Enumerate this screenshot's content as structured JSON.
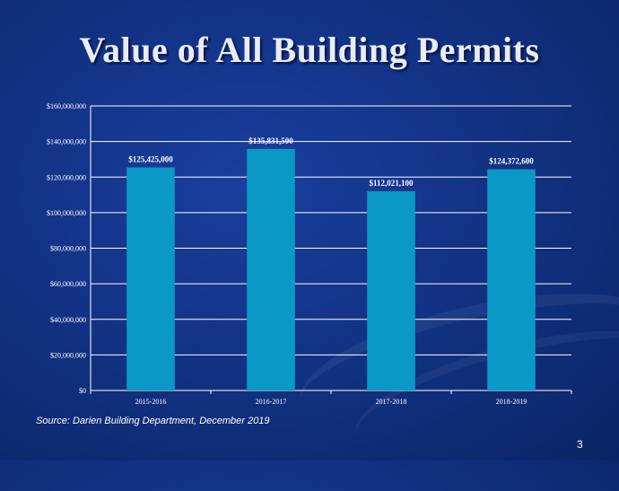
{
  "slide": {
    "title": "Value of All Building Permits",
    "source": "Source: Darien Building Department, December 2019",
    "page_number": "3"
  },
  "colors": {
    "bar": "#0a98c7",
    "grid": "#ffffff",
    "text": "#ffffff"
  },
  "chart_data": {
    "type": "bar",
    "title": "",
    "xlabel": "",
    "ylabel": "",
    "categories": [
      "2015-2016",
      "2016-2017",
      "2017-2018",
      "2018-2019"
    ],
    "values": [
      125425000,
      135831500,
      112021100,
      124372600
    ],
    "data_labels": [
      "$125,425,000",
      "$135,831,500",
      "$112,021,100",
      "$124,372,600"
    ],
    "ylim": [
      0,
      160000000
    ],
    "yticks": [
      0,
      20000000,
      40000000,
      60000000,
      80000000,
      100000000,
      120000000,
      140000000,
      160000000
    ],
    "ytick_labels": [
      "$0",
      "$20,000,000",
      "$40,000,000",
      "$60,000,000",
      "$80,000,000",
      "$100,000,000",
      "$120,000,000",
      "$140,000,000",
      "$160,000,000"
    ],
    "grid": true,
    "legend": "none"
  }
}
